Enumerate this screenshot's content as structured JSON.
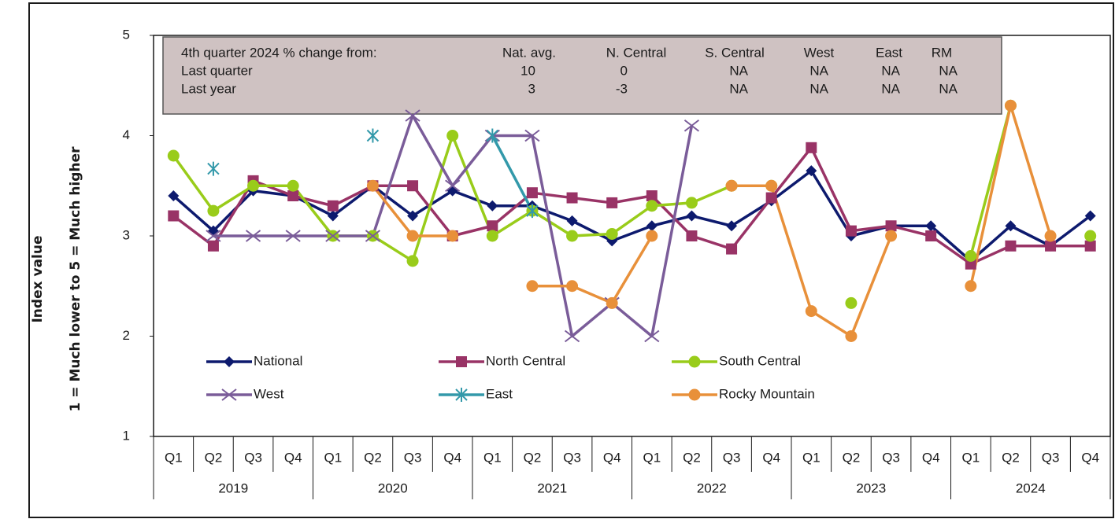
{
  "chart_data": {
    "type": "line",
    "ylabel": [
      "Index value",
      "1 = Much lower  to  5 = Much higher"
    ],
    "categories": [
      "Q1",
      "Q2",
      "Q3",
      "Q4",
      "Q1",
      "Q2",
      "Q3",
      "Q4",
      "Q1",
      "Q2",
      "Q3",
      "Q4",
      "Q1",
      "Q2",
      "Q3",
      "Q4",
      "Q1",
      "Q2",
      "Q3",
      "Q4",
      "Q1",
      "Q2",
      "Q3",
      "Q4"
    ],
    "groups": [
      "2019",
      "2020",
      "2021",
      "2022",
      "2023",
      "2024"
    ],
    "ylim": [
      1,
      5
    ],
    "yticks": [
      1,
      2,
      3,
      4,
      5
    ],
    "legend": "lower-left",
    "series": [
      {
        "name": "National",
        "color": "#0d1a6e",
        "marker": "diamond",
        "values": [
          3.4,
          3.05,
          3.45,
          3.4,
          3.2,
          3.5,
          3.2,
          3.45,
          3.3,
          3.3,
          3.15,
          2.95,
          3.1,
          3.2,
          3.1,
          3.35,
          3.65,
          3,
          3.1,
          3.1,
          2.75,
          3.1,
          2.9,
          3.2
        ]
      },
      {
        "name": "North Central",
        "color": "#993366",
        "marker": "square",
        "values": [
          3.2,
          2.9,
          3.55,
          3.4,
          3.3,
          3.5,
          3.5,
          3,
          3.1,
          3.43,
          3.38,
          3.33,
          3.4,
          3,
          2.87,
          3.38,
          3.88,
          3.05,
          3.1,
          3,
          2.72,
          2.9,
          2.9,
          2.9
        ]
      },
      {
        "name": "South Central",
        "color": "#99cc1a",
        "marker": "circle",
        "values": [
          3.8,
          3.25,
          3.5,
          3.5,
          3,
          3,
          2.75,
          4,
          3,
          3.25,
          3,
          3.02,
          3.3,
          3.33,
          3.5,
          3.5,
          null,
          2.33,
          null,
          null,
          2.8,
          4.3,
          null,
          3
        ]
      },
      {
        "name": "West",
        "color": "#7a5c99",
        "marker": "x",
        "values": [
          null,
          3,
          3,
          3,
          3,
          3,
          4.2,
          3.5,
          4,
          4,
          2,
          2.33,
          2,
          4.1,
          null,
          null,
          null,
          null,
          null,
          null,
          null,
          null,
          null,
          null
        ]
      },
      {
        "name": "East",
        "color": "#3399aa",
        "marker": "asterisk",
        "values": [
          null,
          3.67,
          null,
          null,
          null,
          4,
          null,
          null,
          4,
          3.25,
          null,
          null,
          null,
          null,
          null,
          null,
          null,
          null,
          null,
          null,
          null,
          null,
          null,
          null
        ]
      },
      {
        "name": "Rocky Mountain",
        "color": "#e8903a",
        "marker": "circle",
        "values": [
          null,
          null,
          null,
          null,
          null,
          3.5,
          3,
          3,
          null,
          2.5,
          2.5,
          2.33,
          3,
          null,
          3.5,
          3.5,
          2.25,
          2,
          3,
          null,
          2.5,
          4.3,
          3,
          null
        ]
      }
    ],
    "table": {
      "header": [
        "4th quarter 2024 % change from:",
        "Nat. avg.",
        "N. Central",
        "S. Central",
        "West",
        "East",
        "RM"
      ],
      "rows": [
        [
          "Last quarter",
          10,
          0,
          "NA",
          "NA",
          "NA",
          "NA"
        ],
        [
          "Last year",
          3,
          -3,
          "NA",
          "NA",
          "NA",
          "NA"
        ]
      ]
    }
  }
}
